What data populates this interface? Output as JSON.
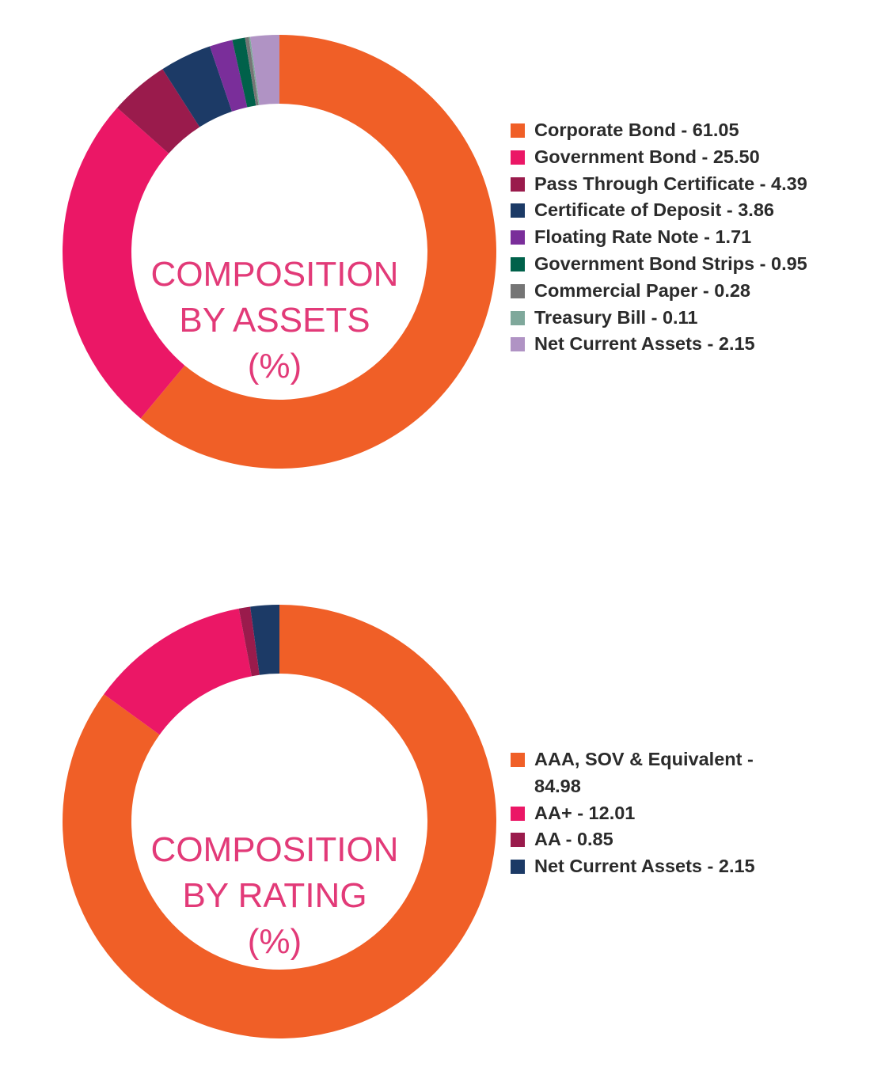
{
  "chart_data": [
    {
      "type": "pie",
      "title": "COMPOSITION BY ASSETS (%)",
      "title_lines": [
        "COMPOSITION",
        "BY ASSETS",
        "(%)"
      ],
      "legend_position": "right",
      "slices": [
        {
          "label": "Corporate Bond",
          "value": 61.05,
          "legend": "Corporate Bond - 61.05",
          "color": "#f05f27"
        },
        {
          "label": "Government Bond",
          "value": 25.5,
          "legend": "Government Bond - 25.50",
          "color": "#eb1766"
        },
        {
          "label": "Pass Through Certificate",
          "value": 4.39,
          "legend": "Pass Through Certificate - 4.39",
          "color": "#9a1b4c"
        },
        {
          "label": "Certificate of Deposit",
          "value": 3.86,
          "legend": "Certificate of Deposit - 3.86",
          "color": "#1c3a66"
        },
        {
          "label": "Floating Rate Note",
          "value": 1.71,
          "legend": "Floating Rate Note - 1.71",
          "color": "#7a2e9a"
        },
        {
          "label": "Government Bond Strips",
          "value": 0.95,
          "legend": "Government Bond Strips - 0.95",
          "color": "#00614a"
        },
        {
          "label": "Commercial Paper",
          "value": 0.28,
          "legend": "Commercial Paper - 0.28",
          "color": "#757575"
        },
        {
          "label": "Treasury Bill",
          "value": 0.11,
          "legend": "Treasury Bill - 0.11",
          "color": "#7fa89b"
        },
        {
          "label": "Net Current Assets",
          "value": 2.15,
          "legend": "Net Current Assets - 2.15",
          "color": "#b093c4"
        }
      ]
    },
    {
      "type": "pie",
      "title": "COMPOSITION BY RATING (%)",
      "title_lines": [
        "COMPOSITION",
        "BY RATING",
        "(%)"
      ],
      "legend_position": "right",
      "slices": [
        {
          "label": "AAA, SOV & Equivalent",
          "value": 84.98,
          "legend": "AAA, SOV & Equivalent - 84.98",
          "color": "#f05f27"
        },
        {
          "label": "AA+",
          "value": 12.01,
          "legend": "AA+ - 12.01",
          "color": "#eb1766"
        },
        {
          "label": "AA",
          "value": 0.85,
          "legend": "AA - 0.85",
          "color": "#9a1b4c"
        },
        {
          "label": "Net Current Assets",
          "value": 2.15,
          "legend": "Net Current Assets - 2.15",
          "color": "#1c3a66"
        }
      ]
    }
  ]
}
